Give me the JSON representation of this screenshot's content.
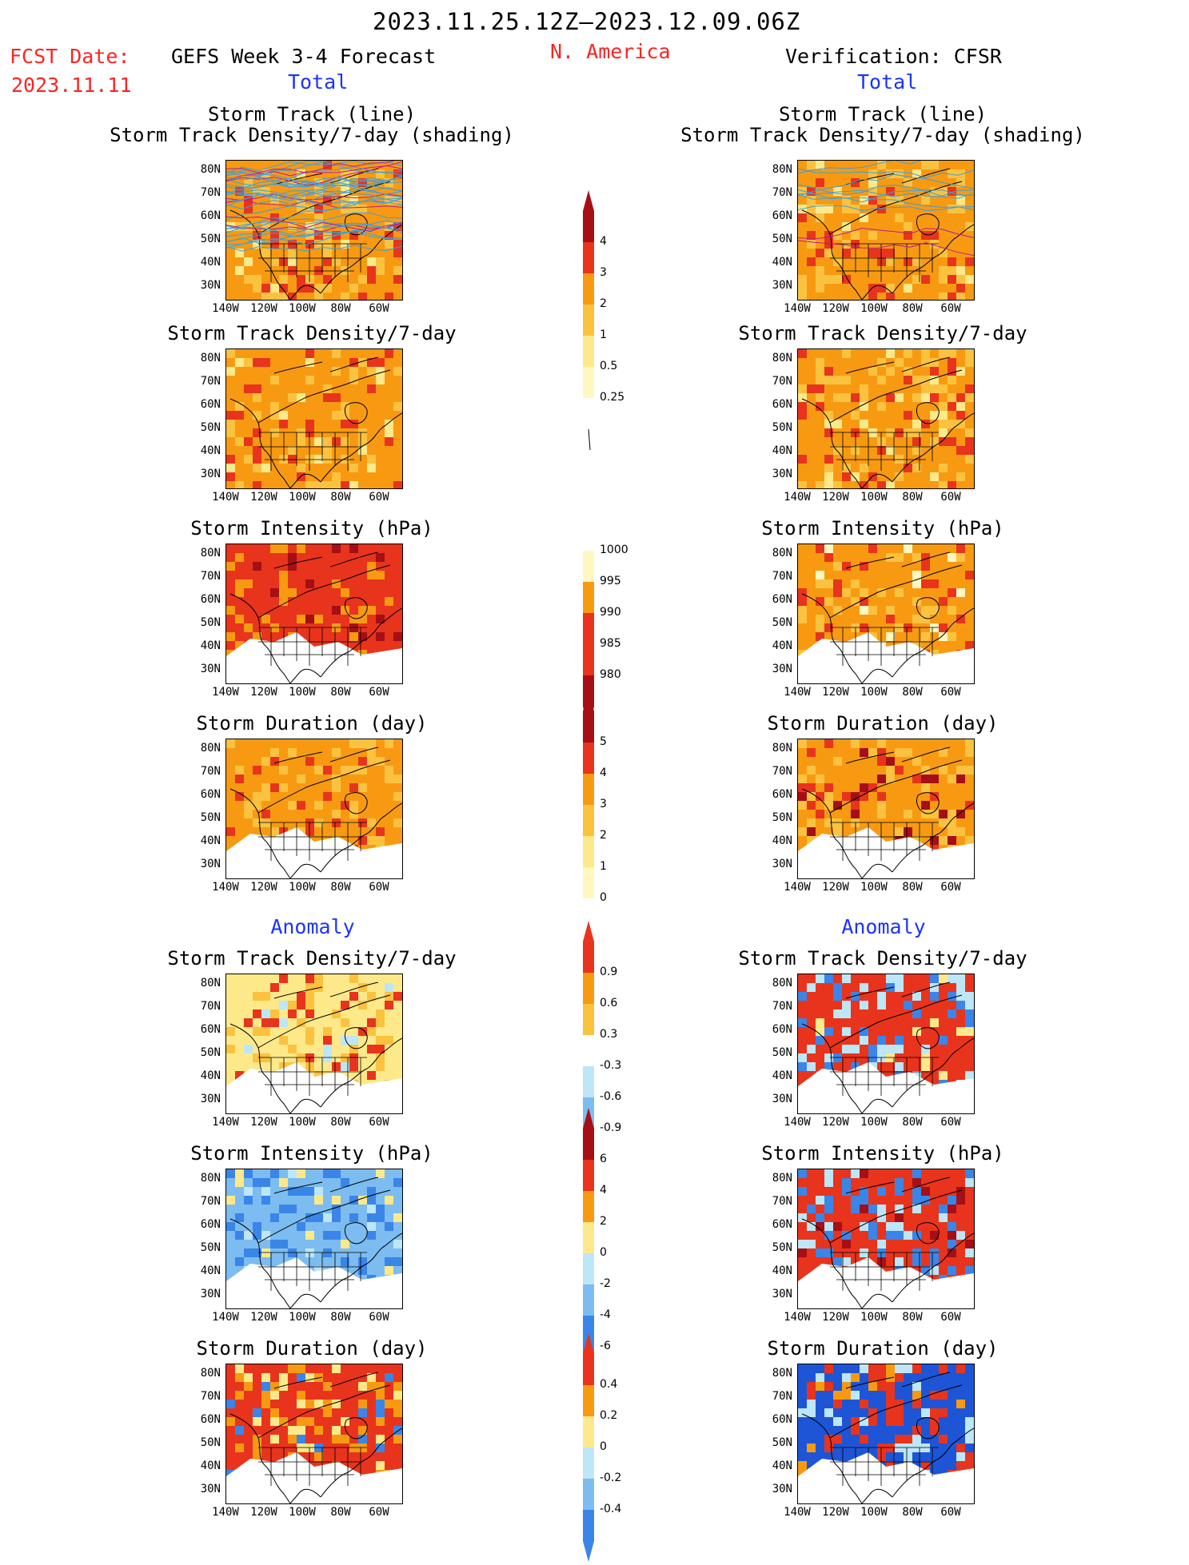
{
  "header": {
    "date_range": "2023.11.25.12Z–2023.12.09.06Z",
    "fcst_label": "FCST Date:",
    "fcst_date": "2023.11.11",
    "left_title": "GEFS Week 3-4 Forecast",
    "region": "N. America",
    "right_title": "Verification: CFSR",
    "total_left": "Total",
    "total_right": "Total",
    "anomaly_left": "Anomaly",
    "anomaly_right": "Anomaly"
  },
  "axes": {
    "lat_ticks": [
      "80N",
      "70N",
      "60N",
      "50N",
      "40N",
      "30N"
    ],
    "lon_ticks": [
      "140W",
      "120W",
      "100W",
      "80W",
      "60W"
    ]
  },
  "panels": {
    "row1_title_line1": "Storm Track (line)",
    "row1_title_line2": "Storm Track Density/7-day (shading)",
    "density": "Storm Track Density/7-day",
    "intensity": "Storm Intensity (hPa)",
    "duration": "Storm Duration (day)"
  },
  "colorbars": {
    "density": [
      "4",
      "3",
      "2",
      "1",
      "0.5",
      "0.25"
    ],
    "intensity": [
      "1000",
      "995",
      "990",
      "985",
      "980"
    ],
    "duration": [
      "5",
      "4",
      "3",
      "2",
      "1",
      "0"
    ],
    "density_anom": [
      "0.9",
      "0.6",
      "0.3",
      "-0.3",
      "-0.6",
      "-0.9"
    ],
    "intensity_anom": [
      "6",
      "4",
      "2",
      "0",
      "-2",
      "-4",
      "-6"
    ],
    "duration_anom": [
      "0.4",
      "0.2",
      "0",
      "-0.2",
      "-0.4"
    ]
  },
  "colors": {
    "dark_red": "#a50f15",
    "red": "#e8341c",
    "orange": "#f79a12",
    "light_orange": "#fbc240",
    "yellow": "#fde98a",
    "pale_yellow": "#fff7c0",
    "light_blue": "#bde6f7",
    "mid_blue": "#7cbcf0",
    "blue": "#3a85e8",
    "dark_blue": "#1d55d6"
  }
}
